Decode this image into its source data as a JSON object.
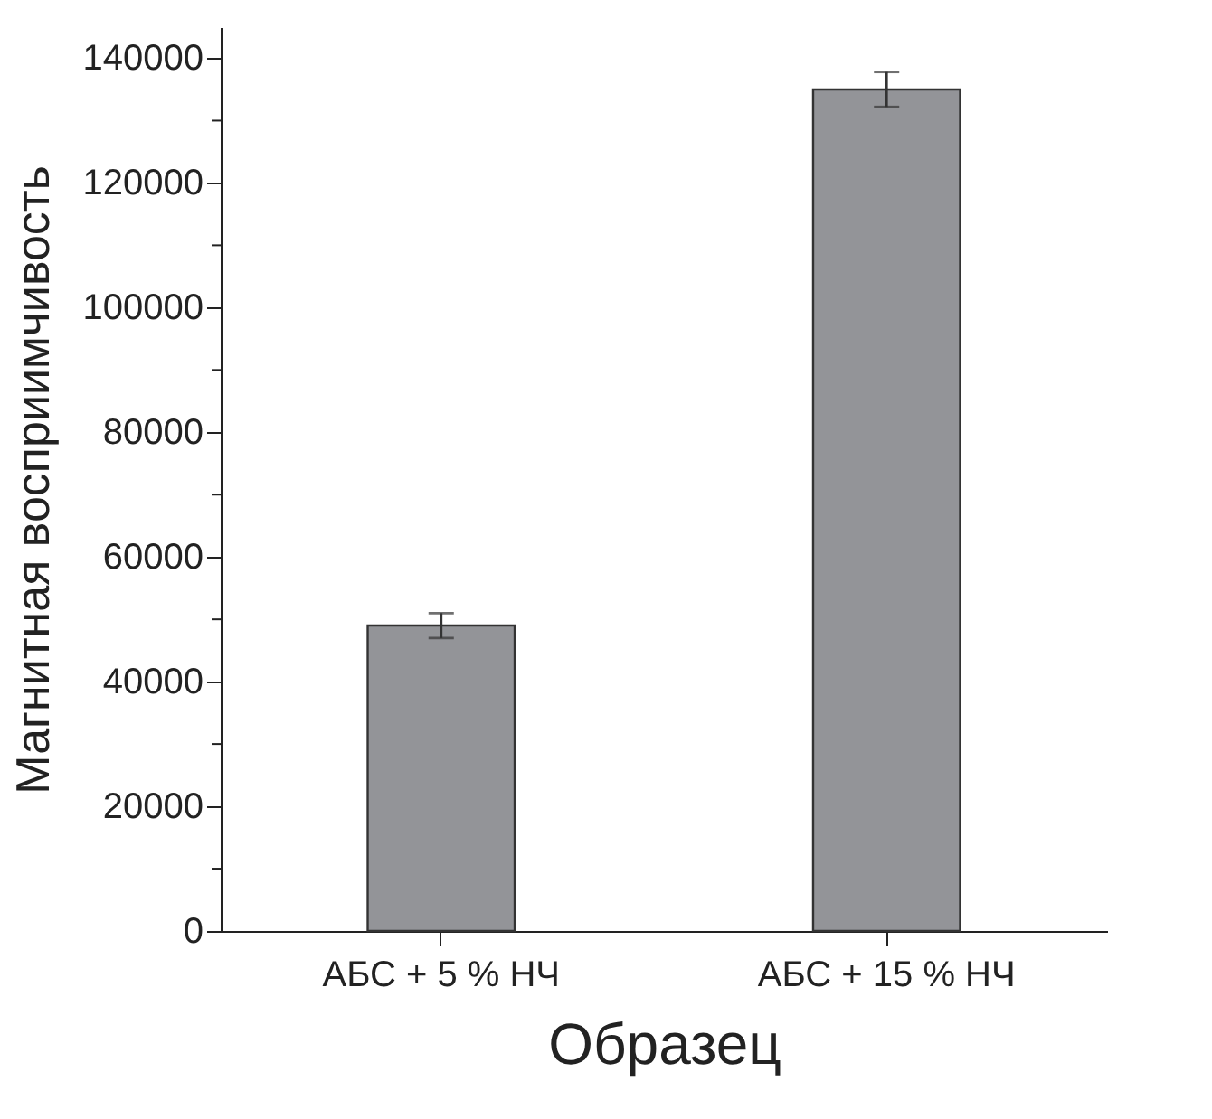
{
  "chart_data": {
    "type": "bar",
    "xlabel": "Образец",
    "ylabel": "Магнитная восприимчивость",
    "categories": [
      "АБС + 5 % НЧ",
      "АБС + 15 % НЧ"
    ],
    "values": [
      49000,
      135000
    ],
    "errors": [
      2000,
      2800
    ],
    "color": "#939498",
    "ylim": [
      0,
      145000
    ],
    "yticks": [
      0,
      {
        "value": 10000,
        "label": null
      },
      20000,
      {
        "value": 30000,
        "label": null
      },
      40000,
      {
        "value": 50000,
        "label": null
      },
      60000,
      {
        "value": 70000,
        "label": null
      },
      80000,
      {
        "value": 90000,
        "label": null
      },
      100000,
      {
        "value": 110000,
        "label": null
      },
      120000,
      {
        "value": 130000,
        "label": null
      },
      140000
    ],
    "grid": false
  }
}
